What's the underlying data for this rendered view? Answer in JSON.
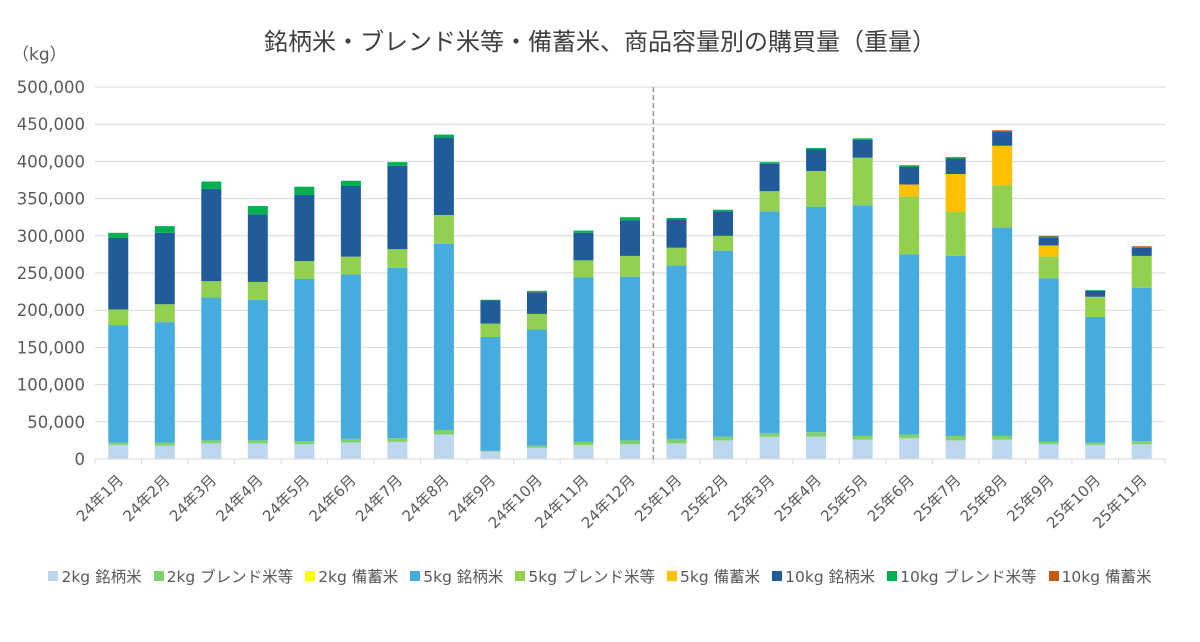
{
  "chart_data": {
    "type": "bar",
    "stacked": true,
    "title": "銘柄米・ブレンド米等・備蓄米、商品容量別の購買量（重量）",
    "ylabel": "（kg）",
    "xlabel": "",
    "ylim": [
      0,
      500000
    ],
    "yticks": [
      0,
      50000,
      100000,
      150000,
      200000,
      250000,
      300000,
      350000,
      400000,
      450000,
      500000
    ],
    "ytick_labels": [
      "0",
      "50,000",
      "100,000",
      "150,000",
      "200,000",
      "250,000",
      "300,000",
      "350,000",
      "400,000",
      "450,000",
      "500,000"
    ],
    "grid": true,
    "legend_position": "bottom",
    "divider_after_category": "24年12月",
    "categories": [
      "24年1月",
      "24年2月",
      "24年3月",
      "24年4月",
      "24年5月",
      "24年6月",
      "24年7月",
      "24年8月",
      "24年9月",
      "24年10月",
      "24年11月",
      "24年12月",
      "25年1月",
      "25年2月",
      "25年3月",
      "25年4月",
      "25年5月",
      "25年6月",
      "25年7月",
      "25年8月",
      "25年9月",
      "25年10月",
      "25年11月"
    ],
    "series": [
      {
        "name": "2kg 銘柄米",
        "color": "#BDD7EE",
        "values": [
          19000,
          18000,
          21000,
          21000,
          20000,
          22000,
          23000,
          33000,
          10000,
          15000,
          19000,
          20000,
          21000,
          25000,
          30000,
          30000,
          26000,
          28000,
          25000,
          26000,
          20000,
          19000,
          20000
        ]
      },
      {
        "name": "2kg ブレンド米等",
        "color": "#7FD16A",
        "values": [
          3000,
          4000,
          4000,
          4000,
          4000,
          5000,
          5000,
          6000,
          1000,
          3000,
          4000,
          5000,
          6000,
          5000,
          5000,
          6000,
          5000,
          5000,
          6000,
          5000,
          3000,
          3000,
          4000
        ]
      },
      {
        "name": "2kg 備蓄米",
        "color": "#FFFF00",
        "values": [
          0,
          0,
          0,
          0,
          0,
          0,
          0,
          0,
          0,
          0,
          0,
          0,
          0,
          0,
          0,
          0,
          0,
          0,
          0,
          0,
          0,
          0,
          0
        ]
      },
      {
        "name": "5kg 銘柄米",
        "color": "#46ACDE",
        "values": [
          158000,
          162000,
          192000,
          189000,
          218000,
          221000,
          229000,
          250000,
          153000,
          156000,
          221000,
          220000,
          233000,
          250000,
          298000,
          303000,
          310000,
          242000,
          242000,
          280000,
          220000,
          169000,
          206000
        ]
      },
      {
        "name": "5kg ブレンド米等",
        "color": "#92D050",
        "values": [
          21000,
          24000,
          22000,
          24000,
          24000,
          24000,
          25000,
          39000,
          18000,
          21000,
          23000,
          28000,
          24000,
          20000,
          27000,
          48000,
          64000,
          78000,
          59000,
          57000,
          29000,
          26000,
          43000
        ]
      },
      {
        "name": "5kg 備蓄米",
        "color": "#FFC000",
        "values": [
          0,
          0,
          0,
          0,
          0,
          0,
          0,
          0,
          0,
          0,
          0,
          0,
          0,
          0,
          0,
          0,
          0,
          16000,
          51000,
          53000,
          15000,
          1000,
          0
        ]
      },
      {
        "name": "10kg 銘柄米",
        "color": "#1F5C99",
        "values": [
          96000,
          96000,
          124000,
          91000,
          89000,
          95000,
          112000,
          104000,
          31000,
          29000,
          37000,
          48000,
          38000,
          33000,
          37000,
          29000,
          24000,
          24000,
          21000,
          19000,
          11000,
          8000,
          11000
        ]
      },
      {
        "name": "10kg ブレンド米等",
        "color": "#00B050",
        "values": [
          7000,
          9000,
          10000,
          11000,
          11000,
          7000,
          5000,
          4000,
          1000,
          2000,
          3000,
          4000,
          2000,
          2000,
          2000,
          2000,
          2000,
          1000,
          1000,
          1000,
          1000,
          1000,
          1000
        ]
      },
      {
        "name": "10kg 備蓄米",
        "color": "#C55A11",
        "values": [
          0,
          0,
          0,
          0,
          0,
          0,
          0,
          0,
          0,
          0,
          0,
          0,
          0,
          0,
          0,
          0,
          0,
          1000,
          1000,
          1000,
          1000,
          0,
          1000
        ]
      }
    ]
  }
}
